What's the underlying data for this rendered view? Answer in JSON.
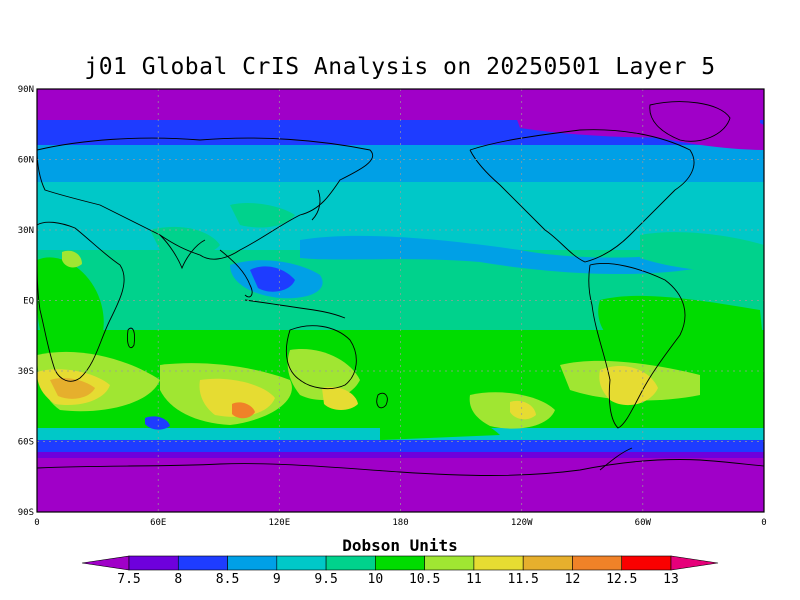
{
  "title": "j01 Global CrIS Analysis on 20250501 Layer 5",
  "colorbar": {
    "title": "Dobson Units",
    "ticks": [
      "7.5",
      "8",
      "8.5",
      "9",
      "9.5",
      "10",
      "10.5",
      "11",
      "11.5",
      "12",
      "12.5",
      "13"
    ],
    "colors": [
      "#a000c8",
      "#6e00dc",
      "#1e3cff",
      "#00a0e6",
      "#00c8c8",
      "#00d28c",
      "#00dc00",
      "#a0e632",
      "#e6dc32",
      "#e6af2d",
      "#f08228",
      "#fa0000",
      "#e6007a"
    ]
  },
  "axes": {
    "lat_labels": [
      "90N",
      "60N",
      "30N",
      "EQ",
      "30S",
      "60S",
      "90S"
    ],
    "lon_labels": [
      "0",
      "60E",
      "120E",
      "180",
      "120W",
      "60W",
      "0"
    ]
  },
  "chart_data": {
    "type": "heatmap",
    "title": "j01 Global CrIS Analysis on 20250501 Layer 5",
    "units": "Dobson Units",
    "levels": [
      7.5,
      8,
      8.5,
      9,
      9.5,
      10,
      10.5,
      11,
      11.5,
      12,
      12.5,
      13
    ],
    "xlim": [
      0,
      360
    ],
    "ylim": [
      -90,
      90
    ],
    "lat_bands": [
      {
        "lat": 85,
        "value": 7.5
      },
      {
        "lat": 70,
        "value": 8.5
      },
      {
        "lat": 55,
        "value": 9.0
      },
      {
        "lat": 40,
        "value": 9.4
      },
      {
        "lat": 20,
        "value": 9.6
      },
      {
        "lat": 0,
        "value": 9.7
      },
      {
        "lat": -20,
        "value": 10.3
      },
      {
        "lat": -35,
        "value": 10.8
      },
      {
        "lat": -45,
        "value": 10.6
      },
      {
        "lat": -55,
        "value": 9.9
      },
      {
        "lat": -62,
        "value": 8.6
      },
      {
        "lat": -80,
        "value": 7.4
      }
    ],
    "grid": true
  }
}
